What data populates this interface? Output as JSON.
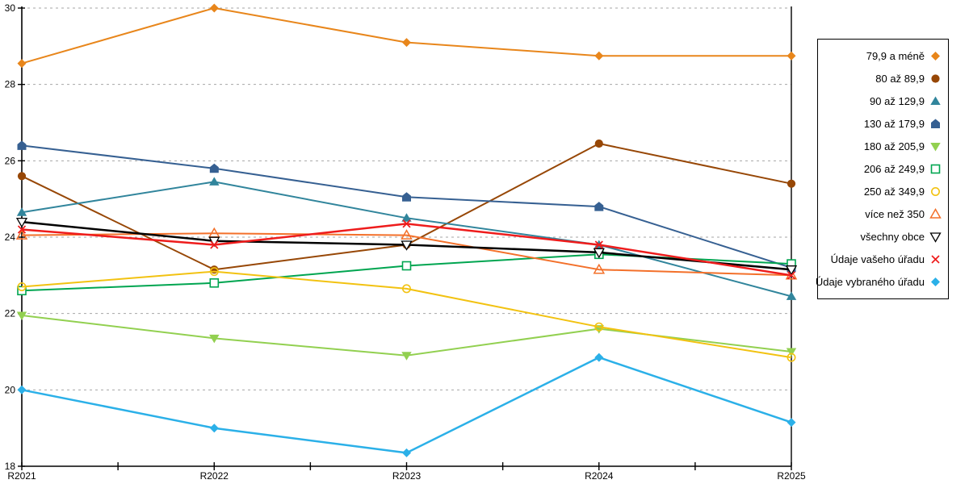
{
  "chart_data": {
    "type": "line",
    "title": "",
    "xlabel": "",
    "ylabel": "",
    "x_categories": [
      "R2021",
      "R2022",
      "R2023",
      "R2024",
      "R2025"
    ],
    "y_axis": {
      "min": 18,
      "max": 30,
      "tick_step": 2,
      "ticks": [
        18,
        20,
        22,
        24,
        26,
        28,
        30
      ]
    },
    "grid": "horizontal-dashed-gray",
    "legend_position": "right",
    "series": [
      {
        "name": "79,9 a méně",
        "marker": "diamond-filled",
        "color": "#E8861B",
        "line_width": 2,
        "values": [
          28.55,
          30.0,
          29.1,
          28.75,
          28.75
        ]
      },
      {
        "name": "80 až 89,9",
        "marker": "circle-filled",
        "color": "#974706",
        "line_width": 2,
        "values": [
          25.6,
          23.15,
          23.8,
          26.45,
          25.4
        ]
      },
      {
        "name": "90 až 129,9",
        "marker": "triangle-up-filled",
        "color": "#31859C",
        "line_width": 2,
        "values": [
          24.65,
          25.45,
          24.5,
          23.8,
          22.45
        ]
      },
      {
        "name": "130 až 179,9",
        "marker": "pentagon-filled",
        "color": "#366092",
        "line_width": 2,
        "values": [
          26.4,
          25.8,
          25.05,
          24.8,
          23.2
        ]
      },
      {
        "name": "180 až 205,9",
        "marker": "triangle-down-filled",
        "color": "#92D050",
        "line_width": 2,
        "values": [
          21.95,
          21.35,
          20.9,
          21.6,
          21.0
        ]
      },
      {
        "name": "206 až 249,9",
        "marker": "square-open",
        "color": "#00A550",
        "line_width": 2,
        "values": [
          22.6,
          22.8,
          23.25,
          23.55,
          23.3
        ]
      },
      {
        "name": "250 až 349,9",
        "marker": "circle-open",
        "color": "#F2C211",
        "line_width": 2,
        "values": [
          22.7,
          23.1,
          22.65,
          21.65,
          20.85
        ]
      },
      {
        "name": "více než 350",
        "marker": "triangle-up-open",
        "color": "#F3702A",
        "line_width": 2,
        "values": [
          24.05,
          24.1,
          24.05,
          23.15,
          23.0
        ]
      },
      {
        "name": "všechny obce",
        "marker": "triangle-down-open",
        "color": "#000000",
        "line_width": 2.5,
        "values": [
          24.4,
          23.9,
          23.8,
          23.6,
          23.15
        ]
      },
      {
        "name": "Údaje vašeho úřadu",
        "marker": "x",
        "color": "#EE1C1C",
        "line_width": 2.5,
        "values": [
          24.2,
          23.8,
          24.35,
          23.8,
          23.0
        ]
      },
      {
        "name": "Údaje vybraného úřadu",
        "marker": "diamond-filled",
        "color": "#2BB0E8",
        "line_width": 2.5,
        "values": [
          20.0,
          19.0,
          18.35,
          20.85,
          19.15
        ]
      }
    ]
  },
  "colors": {
    "axis": "#000000",
    "gridline": "#A6A6A6",
    "background": "#FFFFFF"
  }
}
